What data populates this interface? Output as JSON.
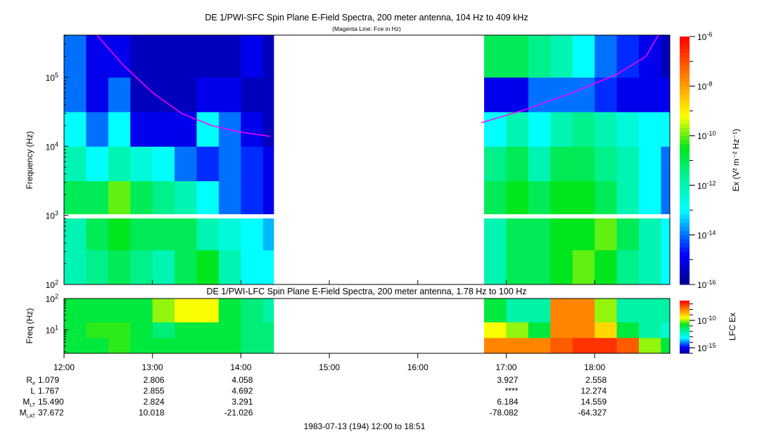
{
  "chart_data": {
    "type": "heatmap",
    "title": "DE 1/PWI-SFC  Spin Plane E-Field Spectra, 200 meter antenna, 104 Hz to 409 kHz",
    "subtitle": "(Magenta Line: Fce in Hz)",
    "lfc_title": "DE 1/PWI-LFC  Spin Plane E-Field Spectra, 200 meter antenna, 1.78 Hz to 100 Hz",
    "xlabel": "1983-07-13 (194) 12:00 to 18:51",
    "ylabel": "Frequency (Hz)",
    "lfc_ylabel": "Freq (Hz)",
    "x_range_hours": [
      12.0,
      18.85
    ],
    "data_gap_hours": [
      14.37,
      16.72
    ],
    "x_ticks": [
      "12:00",
      "13:00",
      "14:00",
      "15:00",
      "16:00",
      "17:00",
      "18:00"
    ],
    "x_tick_hours": [
      12,
      13,
      14,
      15,
      16,
      17,
      18
    ],
    "time_bin_start_hours": [
      12,
      12.25,
      12.5,
      12.75,
      13,
      13.25,
      13.5,
      13.75,
      14,
      14.25,
      14.5,
      14.75,
      15,
      15.25,
      15.5,
      15.75,
      16,
      16.25,
      16.5,
      16.75,
      17,
      17.25,
      17.5,
      17.75,
      18,
      18.25,
      18.5,
      18.75
    ],
    "sfc": {
      "ylim_log10_hz": [
        2,
        5.61
      ],
      "y_ticks": [
        {
          "base": "10",
          "exp": "2",
          "log": 2
        },
        {
          "base": "10",
          "exp": "3",
          "log": 3
        },
        {
          "base": "10",
          "exp": "4",
          "log": 4
        },
        {
          "base": "10",
          "exp": "5",
          "log": 5
        }
      ],
      "freq_bins_log10": [
        [
          2,
          2.5
        ],
        [
          2.5,
          3
        ],
        [
          3,
          3.5
        ],
        [
          3.5,
          4
        ],
        [
          4,
          4.5
        ],
        [
          4.5,
          5
        ],
        [
          5,
          5.61
        ]
      ],
      "log10_ex": [
        [
          -12,
          -11.5,
          -11,
          -11.5,
          -12,
          -11,
          -10.5,
          -12,
          -13,
          -13,
          null,
          null,
          null,
          null,
          null,
          null,
          null,
          null,
          null,
          -12,
          -11,
          -11,
          -10.5,
          -10,
          -10.5,
          -11.5,
          -12,
          -13
        ],
        [
          -12,
          -11,
          -10.5,
          -11,
          -11,
          -11,
          -12,
          -12.5,
          -13,
          -13.5,
          null,
          null,
          null,
          null,
          null,
          null,
          null,
          null,
          null,
          -12,
          -11,
          -11,
          -10.5,
          -10.5,
          -10,
          -11,
          -12,
          -13
        ],
        [
          -11,
          -11,
          -10,
          -11,
          -11.5,
          -12,
          -13,
          -14,
          -14.5,
          -15,
          null,
          null,
          null,
          null,
          null,
          null,
          null,
          null,
          null,
          -11,
          -10.5,
          -11,
          -10.5,
          -10.5,
          -11,
          -12,
          -13,
          -14
        ],
        [
          -12,
          -13,
          -12,
          -12.5,
          -13,
          -14,
          -14.5,
          -14,
          -14.5,
          -15,
          null,
          null,
          null,
          null,
          null,
          null,
          null,
          null,
          null,
          -11.5,
          -11,
          -12,
          -11,
          -11,
          -11.5,
          -12,
          -13,
          -14
        ],
        [
          -13,
          -14,
          -13,
          -15,
          -15,
          -15,
          -13,
          -14,
          -15,
          -15.5,
          null,
          null,
          null,
          null,
          null,
          null,
          null,
          null,
          null,
          -13,
          -12,
          -13,
          -12,
          -11.5,
          -12,
          -12.5,
          -13,
          -13
        ],
        [
          -14,
          -15,
          -14,
          -15.5,
          -15.5,
          -15.5,
          -15,
          -15,
          -15.5,
          -15.5,
          null,
          null,
          null,
          null,
          null,
          null,
          null,
          null,
          null,
          -15,
          -15,
          -14,
          -14,
          -14,
          -14.5,
          -15,
          -15,
          -15
        ],
        [
          -14,
          -15,
          -15,
          -15.5,
          -15.5,
          -15.5,
          -15.5,
          -15.5,
          -15,
          -15.5,
          null,
          null,
          null,
          null,
          null,
          null,
          null,
          null,
          null,
          -11,
          -11,
          -11.5,
          -12,
          -13,
          -14,
          -14.5,
          -15,
          -15.5
        ]
      ],
      "colorbar": {
        "label": "Ex (V² m⁻² Hz⁻¹)",
        "range_log10": [
          -16,
          -6
        ],
        "ticks": [
          {
            "base": "10",
            "exp": "-6",
            "log": -6
          },
          {
            "base": "10",
            "exp": "-8",
            "log": -8
          },
          {
            "base": "10",
            "exp": "-10",
            "log": -10
          },
          {
            "base": "10",
            "exp": "-12",
            "log": -12
          },
          {
            "base": "10",
            "exp": "-14",
            "log": -14
          },
          {
            "base": "10",
            "exp": "-16",
            "log": -16
          }
        ]
      }
    },
    "fce_line": {
      "color": "#ff00ff",
      "segments": [
        [
          [
            12.37,
            409000
          ],
          [
            12.67,
            150000
          ],
          [
            13.0,
            60000
          ],
          [
            13.33,
            30000
          ],
          [
            13.67,
            20000
          ],
          [
            14.0,
            16000
          ],
          [
            14.33,
            14000
          ]
        ],
        [
          [
            16.72,
            22000
          ],
          [
            17.25,
            35000
          ],
          [
            17.75,
            60000
          ],
          [
            18.25,
            110000
          ],
          [
            18.58,
            200000
          ],
          [
            18.72,
            409000
          ]
        ]
      ]
    },
    "lfc": {
      "ylim_log10_hz": [
        0.25,
        2
      ],
      "y_ticks": [
        {
          "base": "10",
          "exp": "1",
          "log": 1
        },
        {
          "base": "10",
          "exp": "2",
          "log": 2
        }
      ],
      "freq_bins_log10": [
        [
          0.25,
          0.75
        ],
        [
          0.75,
          1.25
        ],
        [
          1.25,
          2
        ]
      ],
      "log10_ex": [
        [
          -11,
          -11,
          -10.5,
          -11,
          -11,
          -11,
          -11,
          -11,
          -11.5,
          -11.5,
          null,
          null,
          null,
          null,
          null,
          null,
          null,
          null,
          null,
          -8,
          -8,
          -8,
          -7.5,
          -7,
          -7,
          -7.5,
          -10,
          -11
        ],
        [
          -11,
          -10.5,
          -10.5,
          -11,
          -11.5,
          -11,
          -11,
          -11,
          -11.5,
          -11.5,
          null,
          null,
          null,
          null,
          null,
          null,
          null,
          null,
          null,
          -9.5,
          -10,
          -11,
          -8,
          -8,
          -9,
          -11,
          -12,
          -12.5
        ],
        [
          -11,
          -11,
          -11,
          -11,
          -10,
          -9.5,
          -9.5,
          -11,
          -11.5,
          -12,
          null,
          null,
          null,
          null,
          null,
          null,
          null,
          null,
          null,
          -11,
          -12,
          -12,
          -8,
          -8,
          -10,
          -12,
          -12,
          -12
        ]
      ],
      "colorbar": {
        "label": "LFC Ex",
        "range_log10": [
          -16,
          -6.4
        ],
        "ticks": [
          {
            "base": "10",
            "exp": "-10",
            "log": -10
          },
          {
            "base": "10",
            "exp": "-15",
            "log": -15
          }
        ]
      }
    }
  },
  "ephemeris": {
    "rows": [
      {
        "main": "R",
        "sub": "e",
        "values": [
          "1.079",
          "2.806",
          "4.058",
          "",
          "",
          "3.927",
          "2.558"
        ]
      },
      {
        "main": "L",
        "sub": "",
        "values": [
          "1.767",
          "2.855",
          "4.692",
          "",
          "",
          "****",
          "12.274"
        ]
      },
      {
        "main": "M",
        "sub": "LT",
        "values": [
          "15.490",
          "2.824",
          "3.291",
          "",
          "",
          "6.184",
          "14.559"
        ]
      },
      {
        "main": "M",
        "sub": "LAT",
        "values": [
          "37.672",
          "10.018",
          "-21.026",
          "",
          "",
          "-78.082",
          "-64.327"
        ]
      }
    ]
  }
}
